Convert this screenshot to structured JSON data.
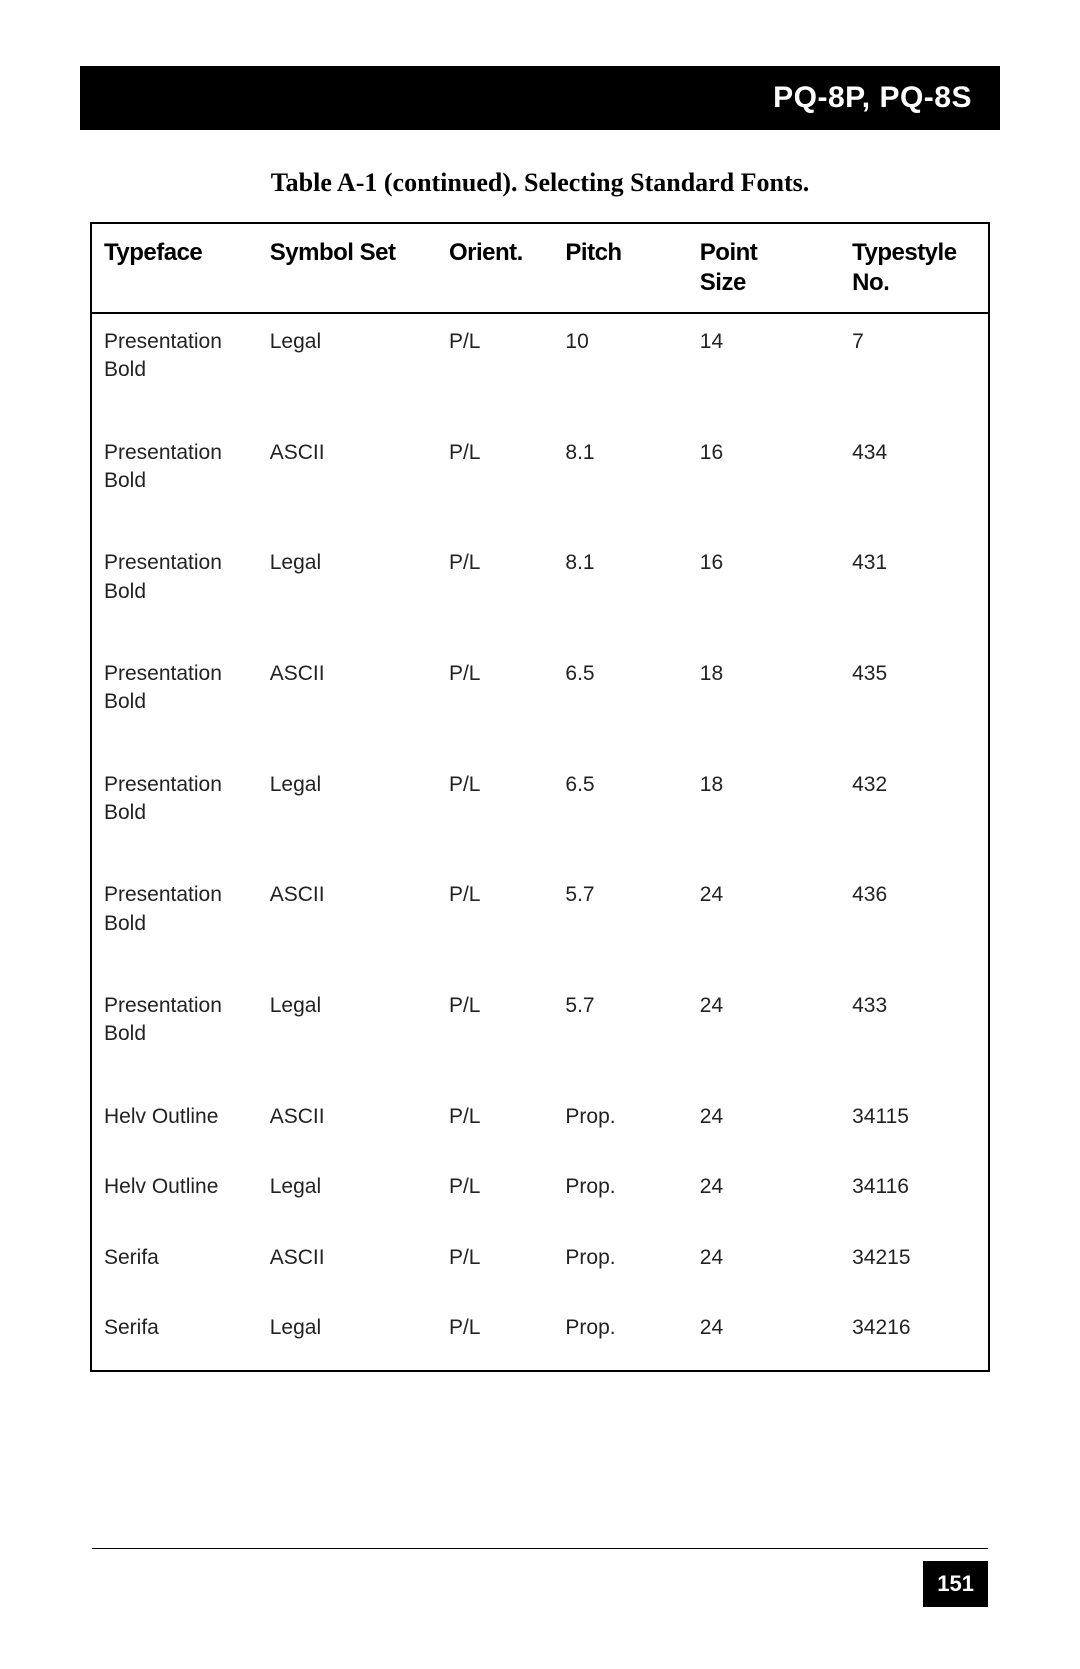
{
  "header": {
    "title": "PQ-8P, PQ-8S"
  },
  "table": {
    "title": "Table A-1 (continued).  Selecting Standard Fonts.",
    "columns": [
      {
        "key": "typeface",
        "label": "Typeface",
        "class": "col-typeface"
      },
      {
        "key": "symbol",
        "label": "Symbol Set",
        "class": "col-symbol"
      },
      {
        "key": "orient",
        "label": "Orient.",
        "class": "col-orient"
      },
      {
        "key": "pitch",
        "label": "Pitch",
        "class": "col-pitch"
      },
      {
        "key": "point",
        "label": "Point\nSize",
        "class": "col-point"
      },
      {
        "key": "typestyle",
        "label": "Typestyle\nNo.",
        "class": "col-typestyle"
      }
    ],
    "rows": [
      {
        "typeface": "Presentation\nBold",
        "symbol": "Legal",
        "orient": "P/L",
        "pitch": "10",
        "point": "14",
        "typestyle": "7",
        "short": false
      },
      {
        "typeface": "Presentation\nBold",
        "symbol": "ASCII",
        "orient": "P/L",
        "pitch": "8.1",
        "point": "16",
        "typestyle": "434",
        "short": false
      },
      {
        "typeface": "Presentation\nBold",
        "symbol": "Legal",
        "orient": "P/L",
        "pitch": "8.1",
        "point": "16",
        "typestyle": "431",
        "short": false
      },
      {
        "typeface": "Presentation\nBold",
        "symbol": "ASCII",
        "orient": "P/L",
        "pitch": "6.5",
        "point": "18",
        "typestyle": "435",
        "short": false
      },
      {
        "typeface": "Presentation\nBold",
        "symbol": "Legal",
        "orient": "P/L",
        "pitch": "6.5",
        "point": "18",
        "typestyle": "432",
        "short": false
      },
      {
        "typeface": "Presentation\nBold",
        "symbol": "ASCII",
        "orient": "P/L",
        "pitch": "5.7",
        "point": "24",
        "typestyle": "436",
        "short": false
      },
      {
        "typeface": "Presentation\nBold",
        "symbol": "Legal",
        "orient": "P/L",
        "pitch": "5.7",
        "point": "24",
        "typestyle": "433",
        "short": false
      },
      {
        "typeface": "Helv Outline",
        "symbol": "ASCII",
        "orient": "P/L",
        "pitch": "Prop.",
        "point": "24",
        "typestyle": "34115",
        "short": true
      },
      {
        "typeface": "Helv Outline",
        "symbol": "Legal",
        "orient": "P/L",
        "pitch": "Prop.",
        "point": "24",
        "typestyle": "34116",
        "short": true
      },
      {
        "typeface": "Serifa",
        "symbol": "ASCII",
        "orient": "P/L",
        "pitch": "Prop.",
        "point": "24",
        "typestyle": "34215",
        "short": true
      },
      {
        "typeface": "Serifa",
        "symbol": "Legal",
        "orient": "P/L",
        "pitch": "Prop.",
        "point": "24",
        "typestyle": "34216",
        "short": true
      }
    ]
  },
  "footer": {
    "page_number": "151"
  }
}
